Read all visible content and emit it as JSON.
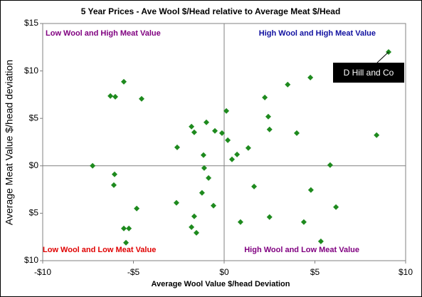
{
  "chart_data": {
    "type": "scatter",
    "title": "5 Year Prices - Ave Wool $/Head relative to Average Meat $/Head",
    "x_label": "Average Wool Value  $/head Deviation",
    "y_label": "Average Meat Value $/head deviation",
    "xlim": [
      -10,
      10
    ],
    "ylim": [
      -10,
      15
    ],
    "xticks": [
      {
        "value": -10,
        "label": "-$10"
      },
      {
        "value": -5,
        "label": "-$5"
      },
      {
        "value": 0,
        "label": "$0"
      },
      {
        "value": 5,
        "label": "$5"
      },
      {
        "value": 10,
        "label": "$10"
      }
    ],
    "yticks": [
      {
        "value": -10,
        "label": "$10"
      },
      {
        "value": -5,
        "label": "$5"
      },
      {
        "value": 0,
        "label": "$0"
      },
      {
        "value": 5,
        "label": "$5"
      },
      {
        "value": 10,
        "label": "$10"
      },
      {
        "value": 15,
        "label": "$15"
      }
    ],
    "series": [
      {
        "color": "#1e8a1e",
        "x": [
          9.06,
          -5.53,
          -6.27,
          -6.0,
          -4.55,
          4.75,
          3.5,
          2.24,
          2.43,
          2.5,
          4.0,
          8.4,
          0.12,
          -1.8,
          -0.98,
          -1.65,
          -0.51,
          -0.12,
          0.2,
          1.33,
          0.71,
          0.43,
          -2.59,
          -1.14,
          -1.1,
          -0.86,
          -7.25,
          -6.04,
          -6.08,
          5.84,
          1.65,
          -1.22,
          -2.63,
          -4.82,
          4.78,
          6.16,
          -0.59,
          -1.65,
          2.5,
          0.9,
          4.39,
          -5.53,
          -5.25,
          -1.8,
          -1.53,
          -5.41,
          5.33
        ],
        "values": [
          12.0,
          8.86,
          7.36,
          7.28,
          7.06,
          9.3,
          8.56,
          7.2,
          5.18,
          3.83,
          3.45,
          3.23,
          5.78,
          4.13,
          4.58,
          3.53,
          3.68,
          3.45,
          2.7,
          1.88,
          1.2,
          0.68,
          1.95,
          1.13,
          -0.23,
          -1.28,
          0,
          -0.9,
          -2.03,
          0.08,
          -2.18,
          -2.85,
          -3.9,
          -4.5,
          -2.55,
          -4.35,
          -4.2,
          -5.33,
          -5.4,
          -5.93,
          -5.93,
          -6.6,
          -6.6,
          -6.46,
          -7.06,
          -8.1,
          -7.96
        ]
      }
    ],
    "quadrant_labels": [
      {
        "text": "Low Wool and High Meat Value",
        "color": "#800080"
      },
      {
        "text": "High Wool and High Meat Value",
        "color": "#1010a0"
      },
      {
        "text": "Low Wool and Low Meat Value",
        "color": "#e00000"
      },
      {
        "text": "High Wool and Low Meat Value",
        "color": "#800080"
      }
    ],
    "callout": "D Hill and Co"
  }
}
